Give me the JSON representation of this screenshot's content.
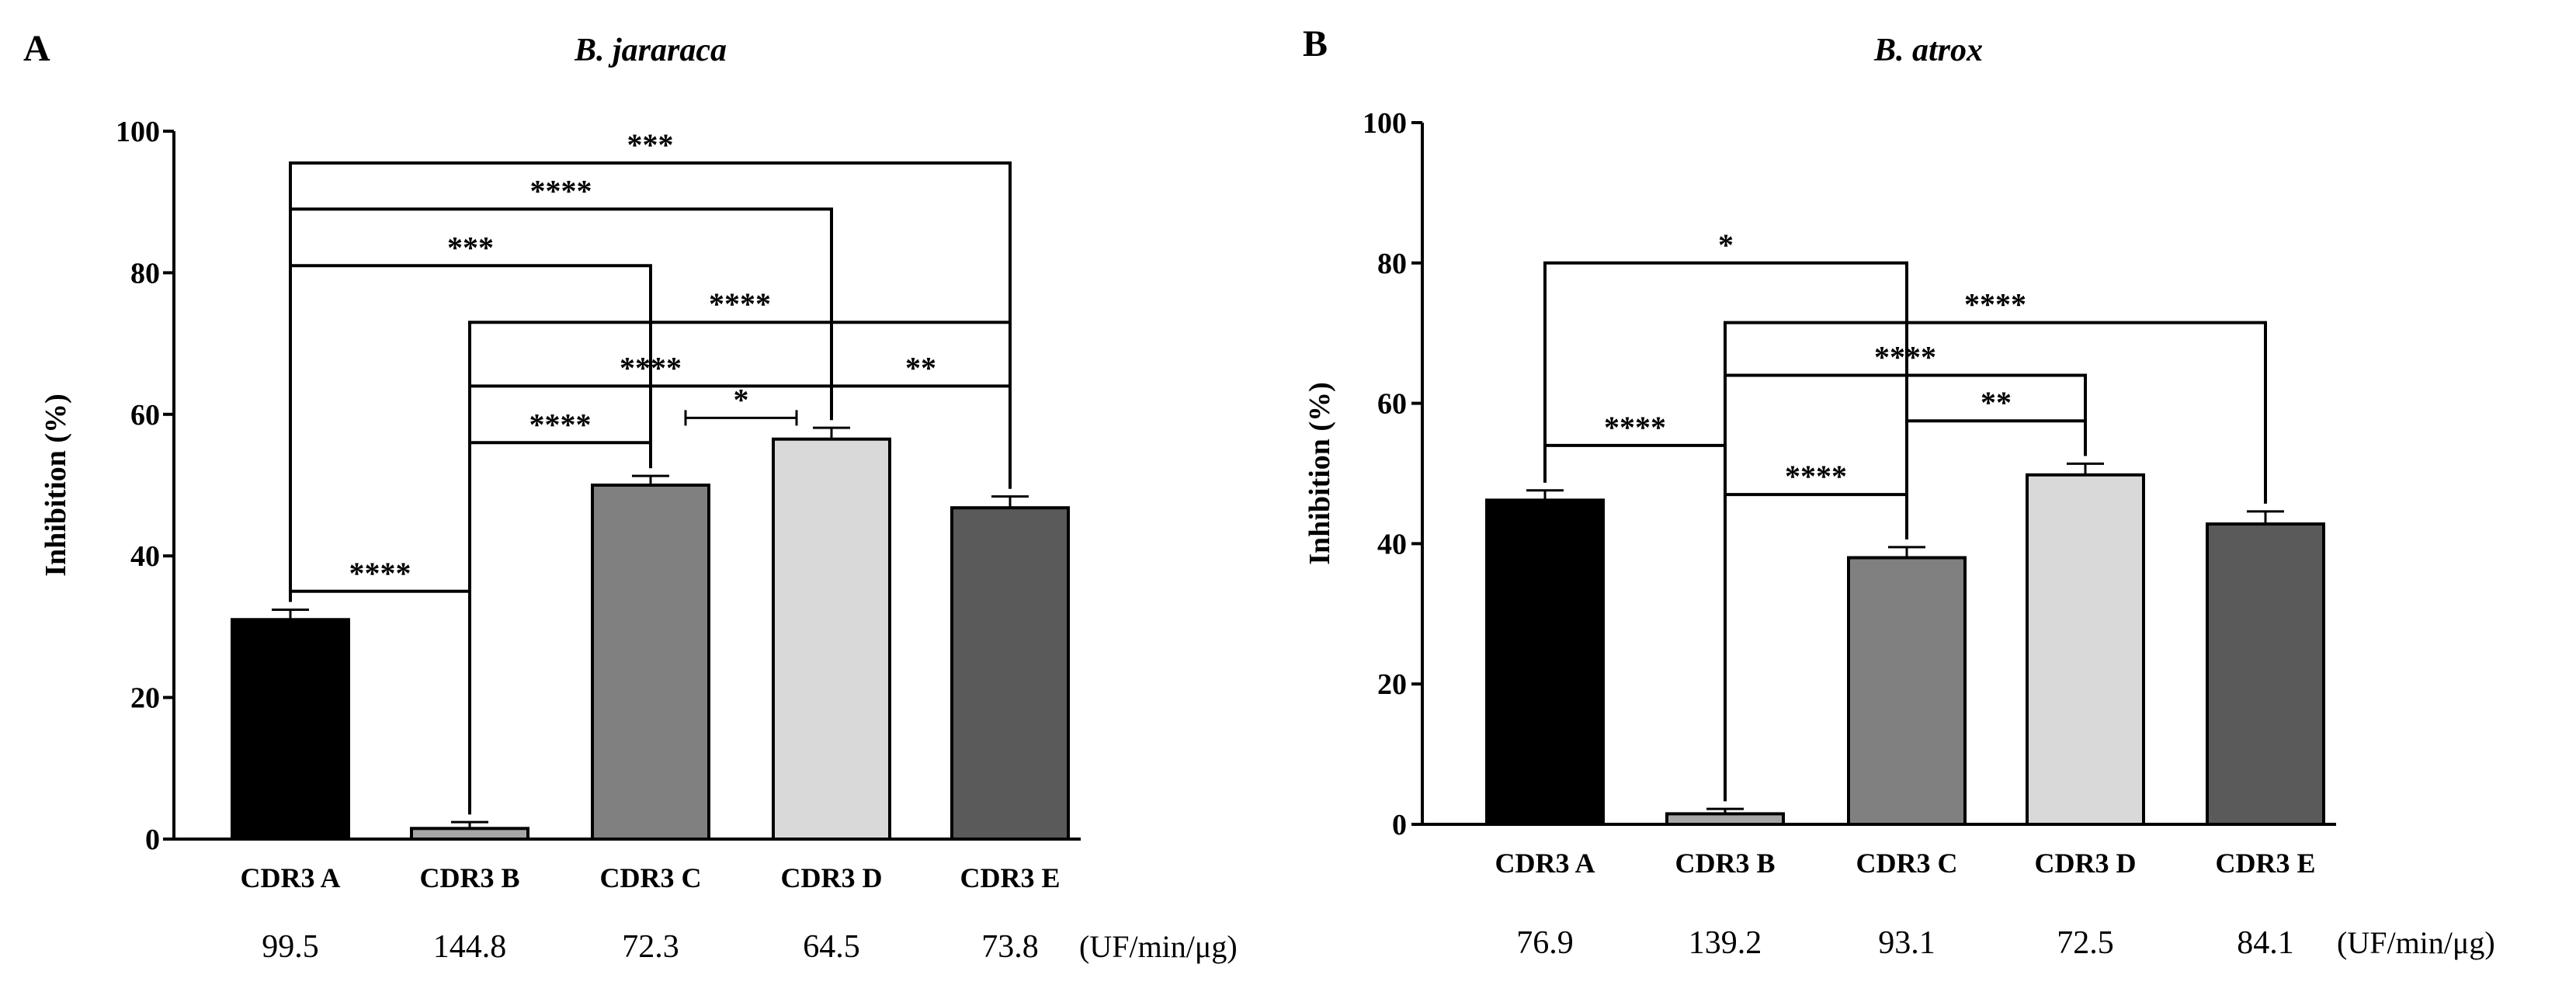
{
  "chart_data": [
    {
      "type": "bar",
      "panel": "A",
      "title": "B. jararaca",
      "ylabel": "Inhibition (%)",
      "xlabel": "",
      "ylim": [
        0,
        100
      ],
      "yticks": [
        0,
        20,
        40,
        60,
        80,
        100
      ],
      "categories": [
        "CDR3 A",
        "CDR3 B",
        "CDR3 C",
        "CDR3 D",
        "CDR3 E"
      ],
      "values": [
        31,
        1.5,
        50,
        56.5,
        46.8
      ],
      "errors": [
        1.4,
        0.9,
        1.3,
        1.6,
        1.6
      ],
      "colors": [
        "#000000",
        "#a6a6a6",
        "#808080",
        "#d9d9d9",
        "#5a5a5a"
      ],
      "rates": [
        "99.5",
        "144.8",
        "72.3",
        "64.5",
        "73.8"
      ],
      "rate_unit": "(UF/min/μg)",
      "significance": [
        {
          "from": 0,
          "to": 1,
          "label": "****",
          "y": 35
        },
        {
          "from": 1,
          "to": 2,
          "label": "****",
          "y": 56
        },
        {
          "from": 1,
          "to": 3,
          "label": "****",
          "y": 64
        },
        {
          "from": 1,
          "to": 4,
          "label": "****",
          "y": 73
        },
        {
          "from": 2,
          "to": 3,
          "label": "*",
          "y": 59.5
        },
        {
          "from": 3,
          "to": 4,
          "label": "**",
          "y": 64
        },
        {
          "from": 0,
          "to": 2,
          "label": "***",
          "y": 81
        },
        {
          "from": 0,
          "to": 3,
          "label": "****",
          "y": 89
        },
        {
          "from": 0,
          "to": 4,
          "label": "***",
          "y": 95.5
        }
      ]
    },
    {
      "type": "bar",
      "panel": "B",
      "title": "B. atrox",
      "ylabel": "Inhibition (%)",
      "xlabel": "",
      "ylim": [
        0,
        100
      ],
      "yticks": [
        0,
        20,
        40,
        60,
        80,
        100
      ],
      "categories": [
        "CDR3 A",
        "CDR3 B",
        "CDR3 C",
        "CDR3 D",
        "CDR3 E"
      ],
      "values": [
        46.2,
        1.5,
        38,
        49.8,
        42.8
      ],
      "errors": [
        1.4,
        0.7,
        1.5,
        1.6,
        1.8
      ],
      "colors": [
        "#000000",
        "#a6a6a6",
        "#808080",
        "#d9d9d9",
        "#5a5a5a"
      ],
      "rates": [
        "76.9",
        "139.2",
        "93.1",
        "72.5",
        "84.1"
      ],
      "rate_unit": "(UF/min/μg)",
      "significance": [
        {
          "from": 0,
          "to": 1,
          "label": "****",
          "y": 54
        },
        {
          "from": 1,
          "to": 2,
          "label": "****",
          "y": 47
        },
        {
          "from": 1,
          "to": 3,
          "label": "****",
          "y": 64
        },
        {
          "from": 1,
          "to": 4,
          "label": "****",
          "y": 71.5
        },
        {
          "from": 2,
          "to": 3,
          "label": "**",
          "y": 57.5
        },
        {
          "from": 0,
          "to": 2,
          "label": "*",
          "y": 80
        }
      ]
    }
  ]
}
